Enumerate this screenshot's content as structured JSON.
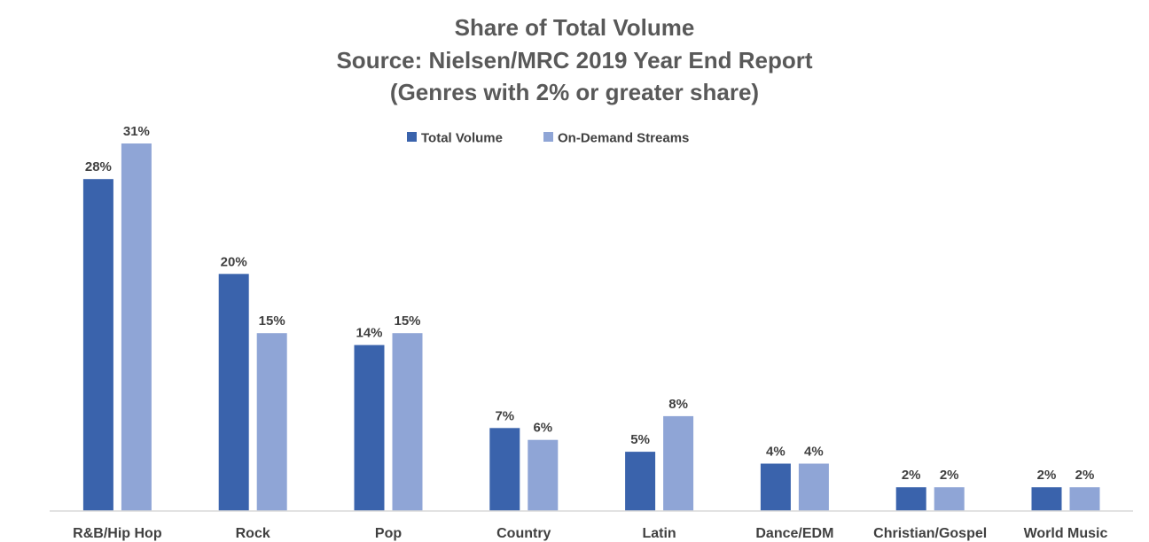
{
  "chart_data": {
    "type": "bar",
    "title_lines": [
      "Share of Total Volume",
      "Source: Nielsen/MRC 2019 Year End Report",
      "(Genres with 2% or greater share)"
    ],
    "categories": [
      "R&B/Hip Hop",
      "Rock",
      "Pop",
      "Country",
      "Latin",
      "Dance/EDM",
      "Christian/Gospel",
      "World Music"
    ],
    "series": [
      {
        "name": "Total Volume",
        "color": "#3A63AC",
        "values": [
          28,
          20,
          14,
          7,
          5,
          4,
          2,
          2
        ],
        "labels": [
          "28%",
          "20%",
          "14%",
          "7%",
          "5%",
          "4%",
          "2%",
          "2%"
        ]
      },
      {
        "name": "On-Demand Streams",
        "color": "#8FA5D6",
        "values": [
          31,
          15,
          15,
          6,
          8,
          4,
          2,
          2
        ],
        "labels": [
          "31%",
          "15%",
          "15%",
          "6%",
          "8%",
          "4%",
          "2%",
          "2%"
        ]
      }
    ],
    "ylim": [
      0,
      31
    ],
    "unit": "%",
    "legend_position": "top-center",
    "grid": false,
    "xlabel": "",
    "ylabel": ""
  }
}
